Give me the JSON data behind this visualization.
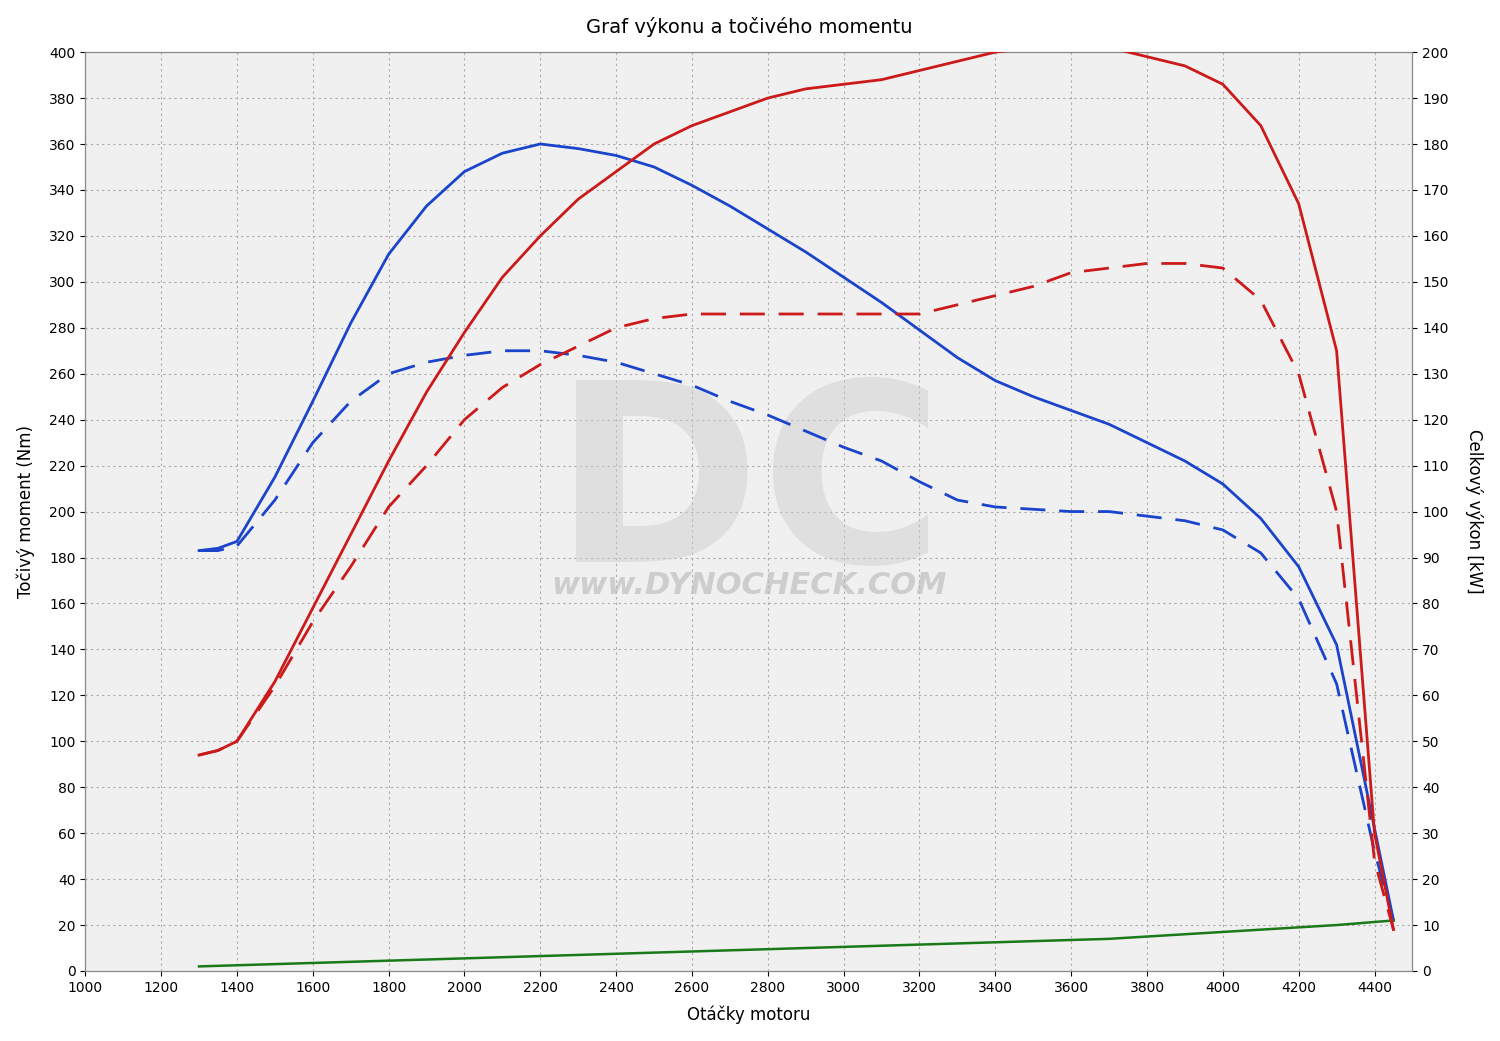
{
  "title": "Graf výkonu a točivého momentu",
  "xlabel": "Otáčky motoru",
  "ylabel_left": "Točivý moment (Nm)",
  "ylabel_right": "Celkový výkon [kW]",
  "xlim": [
    1000,
    4500
  ],
  "ylim_left": [
    0,
    400
  ],
  "ylim_right": [
    0,
    200
  ],
  "xticks": [
    1000,
    1200,
    1400,
    1600,
    1800,
    2000,
    2200,
    2400,
    2600,
    2800,
    3000,
    3200,
    3400,
    3600,
    3800,
    4000,
    4200,
    4400
  ],
  "yticks_left": [
    0,
    20,
    40,
    60,
    80,
    100,
    120,
    140,
    160,
    180,
    200,
    220,
    240,
    260,
    280,
    300,
    320,
    340,
    360,
    380,
    400
  ],
  "yticks_right": [
    0,
    10,
    20,
    30,
    40,
    50,
    60,
    70,
    80,
    90,
    100,
    110,
    120,
    130,
    140,
    150,
    160,
    170,
    180,
    190,
    200
  ],
  "blue_solid_rpm": [
    1300,
    1350,
    1400,
    1500,
    1600,
    1700,
    1800,
    1900,
    2000,
    2100,
    2200,
    2300,
    2400,
    2500,
    2600,
    2700,
    2800,
    2900,
    3000,
    3100,
    3200,
    3300,
    3400,
    3500,
    3600,
    3700,
    3800,
    3900,
    4000,
    4100,
    4200,
    4300,
    4400,
    4450
  ],
  "blue_solid_vals": [
    183,
    184,
    187,
    215,
    248,
    282,
    312,
    333,
    348,
    356,
    360,
    358,
    355,
    350,
    342,
    333,
    323,
    313,
    302,
    291,
    279,
    267,
    257,
    250,
    244,
    238,
    230,
    222,
    212,
    197,
    176,
    142,
    62,
    22
  ],
  "blue_dashed_rpm": [
    1300,
    1350,
    1400,
    1500,
    1600,
    1700,
    1800,
    1900,
    2000,
    2100,
    2200,
    2300,
    2400,
    2500,
    2600,
    2700,
    2800,
    2900,
    3000,
    3100,
    3200,
    3300,
    3400,
    3500,
    3600,
    3700,
    3800,
    3900,
    4000,
    4100,
    4200,
    4300,
    4400,
    4450
  ],
  "blue_dashed_vals": [
    183,
    183,
    185,
    205,
    230,
    248,
    260,
    265,
    268,
    270,
    270,
    268,
    265,
    260,
    255,
    248,
    242,
    235,
    228,
    222,
    213,
    205,
    202,
    201,
    200,
    200,
    198,
    196,
    192,
    182,
    162,
    125,
    52,
    22
  ],
  "red_solid_rpm": [
    1300,
    1350,
    1400,
    1500,
    1600,
    1700,
    1800,
    1900,
    2000,
    2100,
    2200,
    2300,
    2400,
    2500,
    2600,
    2700,
    2800,
    2900,
    3000,
    3100,
    3200,
    3300,
    3400,
    3500,
    3600,
    3700,
    3800,
    3900,
    4000,
    4100,
    4200,
    4300,
    4400,
    4450
  ],
  "red_solid_vals": [
    47,
    48,
    50,
    63,
    79,
    95,
    111,
    126,
    139,
    151,
    160,
    168,
    174,
    180,
    184,
    187,
    190,
    192,
    193,
    194,
    196,
    198,
    200,
    201,
    201,
    201,
    199,
    197,
    193,
    184,
    167,
    135,
    30,
    9
  ],
  "red_dashed_rpm": [
    1300,
    1350,
    1400,
    1500,
    1600,
    1700,
    1800,
    1900,
    2000,
    2100,
    2200,
    2300,
    2400,
    2500,
    2600,
    2700,
    2800,
    2900,
    3000,
    3100,
    3200,
    3300,
    3400,
    3500,
    3600,
    3700,
    3800,
    3900,
    4000,
    4100,
    4200,
    4300,
    4400,
    4450
  ],
  "red_dashed_vals": [
    47,
    48,
    50,
    62,
    76,
    88,
    101,
    110,
    120,
    127,
    132,
    136,
    140,
    142,
    143,
    143,
    143,
    143,
    143,
    143,
    143,
    145,
    147,
    149,
    152,
    153,
    154,
    154,
    153,
    146,
    130,
    100,
    24,
    9
  ],
  "green_rpm": [
    1300,
    1500,
    1700,
    1900,
    2100,
    2300,
    2500,
    2700,
    2900,
    3100,
    3300,
    3500,
    3700,
    3900,
    4100,
    4300,
    4450
  ],
  "green_vals": [
    2,
    3,
    4,
    5,
    6,
    7,
    8,
    9,
    10,
    11,
    12,
    13,
    14,
    16,
    18,
    20,
    22
  ],
  "blue_color": "#1a44cc",
  "red_color": "#cc1a1a",
  "green_color": "#1a7a1a",
  "watermark_text": "www.DYNOCHECK.COM",
  "watermark_dc": "DC"
}
